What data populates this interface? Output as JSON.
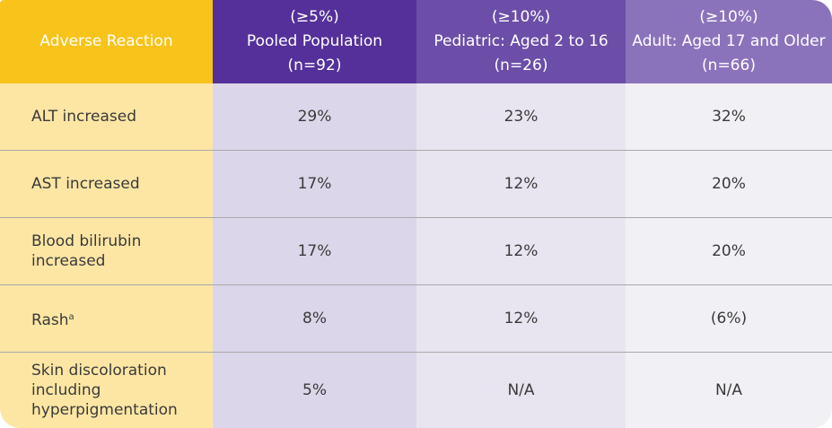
{
  "table": {
    "header": {
      "first": "Adverse Reaction",
      "columns": [
        {
          "threshold": "(≥5%)",
          "name": "Pooled Population",
          "n": "(n=92)"
        },
        {
          "threshold": "(≥10%)",
          "name": "Pediatric: Aged 2 to 16",
          "n": "(n=26)"
        },
        {
          "threshold": "(≥10%)",
          "name": "Adult: Aged 17 and Older",
          "n": "(n=66)"
        }
      ]
    },
    "rows": [
      {
        "reaction": "ALT increased",
        "values": [
          "29%",
          "23%",
          "32%"
        ]
      },
      {
        "reaction": "AST increased",
        "values": [
          "17%",
          "12%",
          "20%"
        ]
      },
      {
        "reaction": "Blood bilirubin increased",
        "values": [
          "17%",
          "12%",
          "20%"
        ]
      },
      {
        "reaction": "Rash",
        "footnote": "a",
        "values": [
          "8%",
          "12%",
          "(6%)"
        ]
      },
      {
        "reaction": "Skin discoloration including hyperpigmentation",
        "values": [
          "5%",
          "N/A",
          "N/A"
        ]
      }
    ]
  }
}
